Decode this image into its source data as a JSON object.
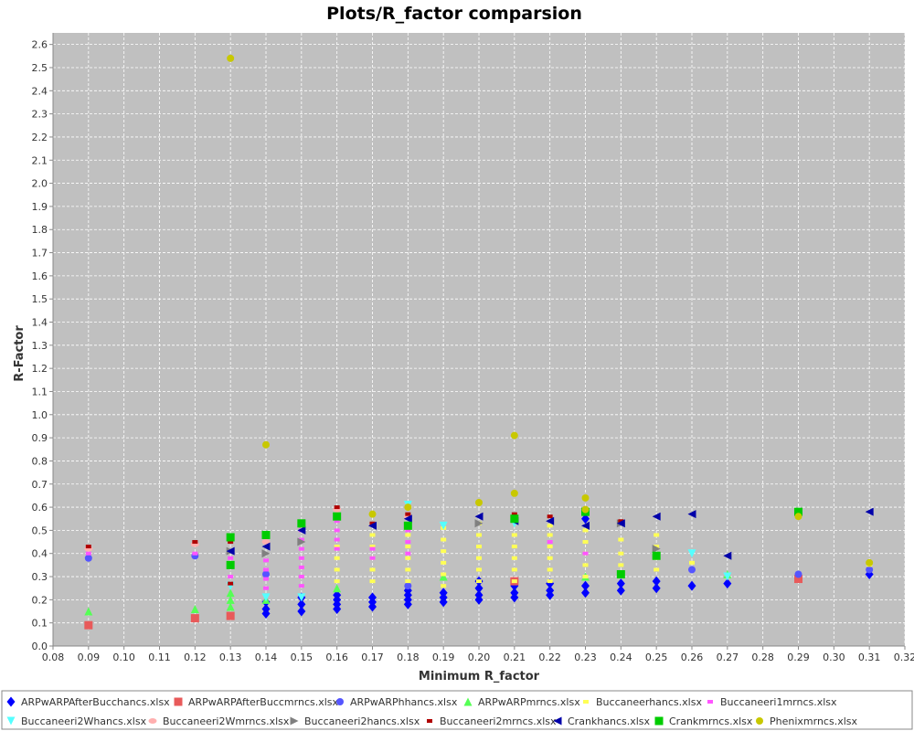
{
  "chart_data": {
    "type": "scatter",
    "title": "Plots/R_factor comparsion",
    "xlabel": "Minimum R_factor",
    "ylabel": "R-Factor",
    "xlim": [
      0.08,
      0.32
    ],
    "ylim": [
      0.0,
      2.65
    ],
    "xticks": [
      "0.08",
      "0.09",
      "0.10",
      "0.11",
      "0.12",
      "0.13",
      "0.14",
      "0.15",
      "0.16",
      "0.17",
      "0.18",
      "0.19",
      "0.20",
      "0.21",
      "0.22",
      "0.23",
      "0.24",
      "0.25",
      "0.26",
      "0.27",
      "0.28",
      "0.29",
      "0.30",
      "0.31",
      "0.32"
    ],
    "yticks": [
      "0.0",
      "0.1",
      "0.2",
      "0.3",
      "0.4",
      "0.5",
      "0.6",
      "0.7",
      "0.8",
      "0.9",
      "1.0",
      "1.1",
      "1.2",
      "1.3",
      "1.4",
      "1.5",
      "1.6",
      "1.7",
      "1.8",
      "1.9",
      "2.0",
      "2.1",
      "2.2",
      "2.3",
      "2.4",
      "2.5",
      "2.6"
    ],
    "grid": true,
    "legend_position": "bottom",
    "series": [
      {
        "name": "ARPwARPAfterBucchancs.xlsx",
        "color": "#0000ff",
        "marker": "diamond",
        "points": [
          [
            0.14,
            0.14
          ],
          [
            0.14,
            0.16
          ],
          [
            0.14,
            0.19
          ],
          [
            0.15,
            0.15
          ],
          [
            0.15,
            0.18
          ],
          [
            0.15,
            0.21
          ],
          [
            0.16,
            0.16
          ],
          [
            0.16,
            0.18
          ],
          [
            0.16,
            0.2
          ],
          [
            0.16,
            0.22
          ],
          [
            0.17,
            0.17
          ],
          [
            0.17,
            0.19
          ],
          [
            0.17,
            0.21
          ],
          [
            0.18,
            0.18
          ],
          [
            0.18,
            0.2
          ],
          [
            0.18,
            0.22
          ],
          [
            0.18,
            0.24
          ],
          [
            0.19,
            0.19
          ],
          [
            0.19,
            0.21
          ],
          [
            0.19,
            0.23
          ],
          [
            0.2,
            0.2
          ],
          [
            0.2,
            0.22
          ],
          [
            0.2,
            0.25
          ],
          [
            0.2,
            0.28
          ],
          [
            0.21,
            0.21
          ],
          [
            0.21,
            0.23
          ],
          [
            0.21,
            0.26
          ],
          [
            0.22,
            0.22
          ],
          [
            0.22,
            0.24
          ],
          [
            0.22,
            0.27
          ],
          [
            0.23,
            0.23
          ],
          [
            0.23,
            0.26
          ],
          [
            0.23,
            0.55
          ],
          [
            0.24,
            0.24
          ],
          [
            0.24,
            0.27
          ],
          [
            0.25,
            0.25
          ],
          [
            0.25,
            0.28
          ],
          [
            0.26,
            0.26
          ],
          [
            0.27,
            0.27
          ],
          [
            0.31,
            0.31
          ]
        ]
      },
      {
        "name": "ARPwARPAfterBuccmrncs.xlsx",
        "color": "#e85a5a",
        "marker": "square",
        "points": [
          [
            0.09,
            0.09
          ],
          [
            0.12,
            0.12
          ],
          [
            0.13,
            0.13
          ],
          [
            0.21,
            0.28
          ],
          [
            0.29,
            0.29
          ]
        ]
      },
      {
        "name": "ARPwARPhhancs.xlsx",
        "color": "#5555ff",
        "marker": "circle",
        "points": [
          [
            0.09,
            0.38
          ],
          [
            0.12,
            0.39
          ],
          [
            0.14,
            0.31
          ],
          [
            0.18,
            0.26
          ],
          [
            0.26,
            0.33
          ],
          [
            0.29,
            0.31
          ],
          [
            0.31,
            0.33
          ]
        ]
      },
      {
        "name": "ARPwARPmrncs.xlsx",
        "color": "#55ff55",
        "marker": "triangle-up",
        "points": [
          [
            0.09,
            0.15
          ],
          [
            0.12,
            0.16
          ],
          [
            0.13,
            0.17
          ],
          [
            0.13,
            0.2
          ],
          [
            0.13,
            0.23
          ],
          [
            0.14,
            0.2
          ],
          [
            0.16,
            0.25
          ],
          [
            0.19,
            0.3
          ],
          [
            0.23,
            0.3
          ],
          [
            0.27,
            0.31
          ]
        ]
      },
      {
        "name": "Buccaneerhancs.xlsx",
        "color": "#ffff55",
        "marker": "rect",
        "points": [
          [
            0.16,
            0.28
          ],
          [
            0.16,
            0.33
          ],
          [
            0.16,
            0.38
          ],
          [
            0.16,
            0.43
          ],
          [
            0.17,
            0.28
          ],
          [
            0.17,
            0.33
          ],
          [
            0.17,
            0.38
          ],
          [
            0.17,
            0.43
          ],
          [
            0.17,
            0.48
          ],
          [
            0.18,
            0.28
          ],
          [
            0.18,
            0.33
          ],
          [
            0.18,
            0.38
          ],
          [
            0.18,
            0.43
          ],
          [
            0.18,
            0.48
          ],
          [
            0.19,
            0.26
          ],
          [
            0.19,
            0.31
          ],
          [
            0.19,
            0.36
          ],
          [
            0.19,
            0.41
          ],
          [
            0.19,
            0.46
          ],
          [
            0.19,
            0.51
          ],
          [
            0.2,
            0.28
          ],
          [
            0.2,
            0.33
          ],
          [
            0.2,
            0.38
          ],
          [
            0.2,
            0.43
          ],
          [
            0.2,
            0.48
          ],
          [
            0.2,
            0.53
          ],
          [
            0.21,
            0.28
          ],
          [
            0.21,
            0.33
          ],
          [
            0.21,
            0.38
          ],
          [
            0.21,
            0.43
          ],
          [
            0.21,
            0.48
          ],
          [
            0.22,
            0.28
          ],
          [
            0.22,
            0.33
          ],
          [
            0.22,
            0.38
          ],
          [
            0.22,
            0.43
          ],
          [
            0.22,
            0.48
          ],
          [
            0.22,
            0.52
          ],
          [
            0.23,
            0.3
          ],
          [
            0.23,
            0.35
          ],
          [
            0.23,
            0.4
          ],
          [
            0.23,
            0.45
          ],
          [
            0.23,
            0.5
          ],
          [
            0.24,
            0.3
          ],
          [
            0.24,
            0.35
          ],
          [
            0.24,
            0.4
          ],
          [
            0.24,
            0.46
          ],
          [
            0.25,
            0.33
          ],
          [
            0.25,
            0.38
          ],
          [
            0.25,
            0.43
          ],
          [
            0.25,
            0.48
          ],
          [
            0.26,
            0.36
          ],
          [
            0.31,
            0.35
          ]
        ]
      },
      {
        "name": "Buccaneeri1mrncs.xlsx",
        "color": "#ff55ff",
        "marker": "rect",
        "points": [
          [
            0.09,
            0.4
          ],
          [
            0.12,
            0.4
          ],
          [
            0.13,
            0.3
          ],
          [
            0.13,
            0.34
          ],
          [
            0.13,
            0.38
          ],
          [
            0.14,
            0.25
          ],
          [
            0.14,
            0.29
          ],
          [
            0.14,
            0.33
          ],
          [
            0.14,
            0.37
          ],
          [
            0.15,
            0.26
          ],
          [
            0.15,
            0.3
          ],
          [
            0.15,
            0.34
          ],
          [
            0.15,
            0.38
          ],
          [
            0.15,
            0.42
          ],
          [
            0.15,
            0.46
          ],
          [
            0.15,
            0.5
          ],
          [
            0.16,
            0.42
          ],
          [
            0.16,
            0.46
          ],
          [
            0.16,
            0.5
          ],
          [
            0.16,
            0.54
          ],
          [
            0.17,
            0.38
          ],
          [
            0.17,
            0.42
          ],
          [
            0.18,
            0.4
          ],
          [
            0.18,
            0.45
          ],
          [
            0.18,
            0.5
          ],
          [
            0.22,
            0.45
          ],
          [
            0.23,
            0.4
          ]
        ]
      },
      {
        "name": "Buccaneeri2Whancs.xlsx",
        "color": "#55ffff",
        "marker": "triangle-down",
        "points": [
          [
            0.13,
            0.26
          ],
          [
            0.14,
            0.21
          ],
          [
            0.15,
            0.21
          ],
          [
            0.18,
            0.61
          ],
          [
            0.19,
            0.52
          ],
          [
            0.21,
            0.53
          ],
          [
            0.26,
            0.4
          ],
          [
            0.27,
            0.3
          ]
        ]
      },
      {
        "name": "Buccaneeri2Wmrncs.xlsx",
        "color": "#ffafaf",
        "marker": "ellipse",
        "points": [
          [
            0.09,
            0.42
          ],
          [
            0.12,
            0.44
          ],
          [
            0.14,
            0.45
          ],
          [
            0.16,
            0.59
          ],
          [
            0.18,
            0.56
          ],
          [
            0.21,
            0.56
          ]
        ]
      },
      {
        "name": "Buccaneeri2hancs.xlsx",
        "color": "#808080",
        "marker": "triangle-right",
        "points": [
          [
            0.13,
            0.41
          ],
          [
            0.14,
            0.4
          ],
          [
            0.15,
            0.45
          ],
          [
            0.2,
            0.53
          ],
          [
            0.24,
            0.53
          ],
          [
            0.25,
            0.42
          ]
        ]
      },
      {
        "name": "Buccaneeri2mrncs.xlsx",
        "color": "#b00000",
        "marker": "rect",
        "points": [
          [
            0.09,
            0.43
          ],
          [
            0.12,
            0.45
          ],
          [
            0.13,
            0.27
          ],
          [
            0.13,
            0.45
          ],
          [
            0.14,
            0.47
          ],
          [
            0.15,
            0.52
          ],
          [
            0.16,
            0.6
          ],
          [
            0.17,
            0.53
          ],
          [
            0.18,
            0.57
          ],
          [
            0.21,
            0.57
          ],
          [
            0.22,
            0.56
          ],
          [
            0.24,
            0.54
          ]
        ]
      },
      {
        "name": "Crankhancs.xlsx",
        "color": "#0000aa",
        "marker": "triangle-left",
        "points": [
          [
            0.13,
            0.41
          ],
          [
            0.14,
            0.43
          ],
          [
            0.15,
            0.5
          ],
          [
            0.17,
            0.52
          ],
          [
            0.18,
            0.55
          ],
          [
            0.2,
            0.56
          ],
          [
            0.21,
            0.54
          ],
          [
            0.22,
            0.54
          ],
          [
            0.23,
            0.52
          ],
          [
            0.24,
            0.53
          ],
          [
            0.25,
            0.56
          ],
          [
            0.26,
            0.57
          ],
          [
            0.27,
            0.39
          ],
          [
            0.31,
            0.58
          ]
        ]
      },
      {
        "name": "Crankmrncs.xlsx",
        "color": "#00cc00",
        "marker": "square",
        "points": [
          [
            0.13,
            0.47
          ],
          [
            0.13,
            0.35
          ],
          [
            0.14,
            0.48
          ],
          [
            0.15,
            0.53
          ],
          [
            0.16,
            0.56
          ],
          [
            0.18,
            0.52
          ],
          [
            0.21,
            0.55
          ],
          [
            0.23,
            0.58
          ],
          [
            0.24,
            0.31
          ],
          [
            0.25,
            0.39
          ],
          [
            0.29,
            0.58
          ]
        ]
      },
      {
        "name": "Phenixmrncs.xlsx",
        "color": "#c8c800",
        "marker": "circle",
        "points": [
          [
            0.13,
            2.54
          ],
          [
            0.14,
            0.87
          ],
          [
            0.17,
            0.57
          ],
          [
            0.18,
            0.6
          ],
          [
            0.2,
            0.62
          ],
          [
            0.21,
            0.91
          ],
          [
            0.21,
            0.66
          ],
          [
            0.23,
            0.64
          ],
          [
            0.23,
            0.59
          ],
          [
            0.29,
            0.56
          ],
          [
            0.31,
            0.36
          ]
        ]
      }
    ]
  }
}
